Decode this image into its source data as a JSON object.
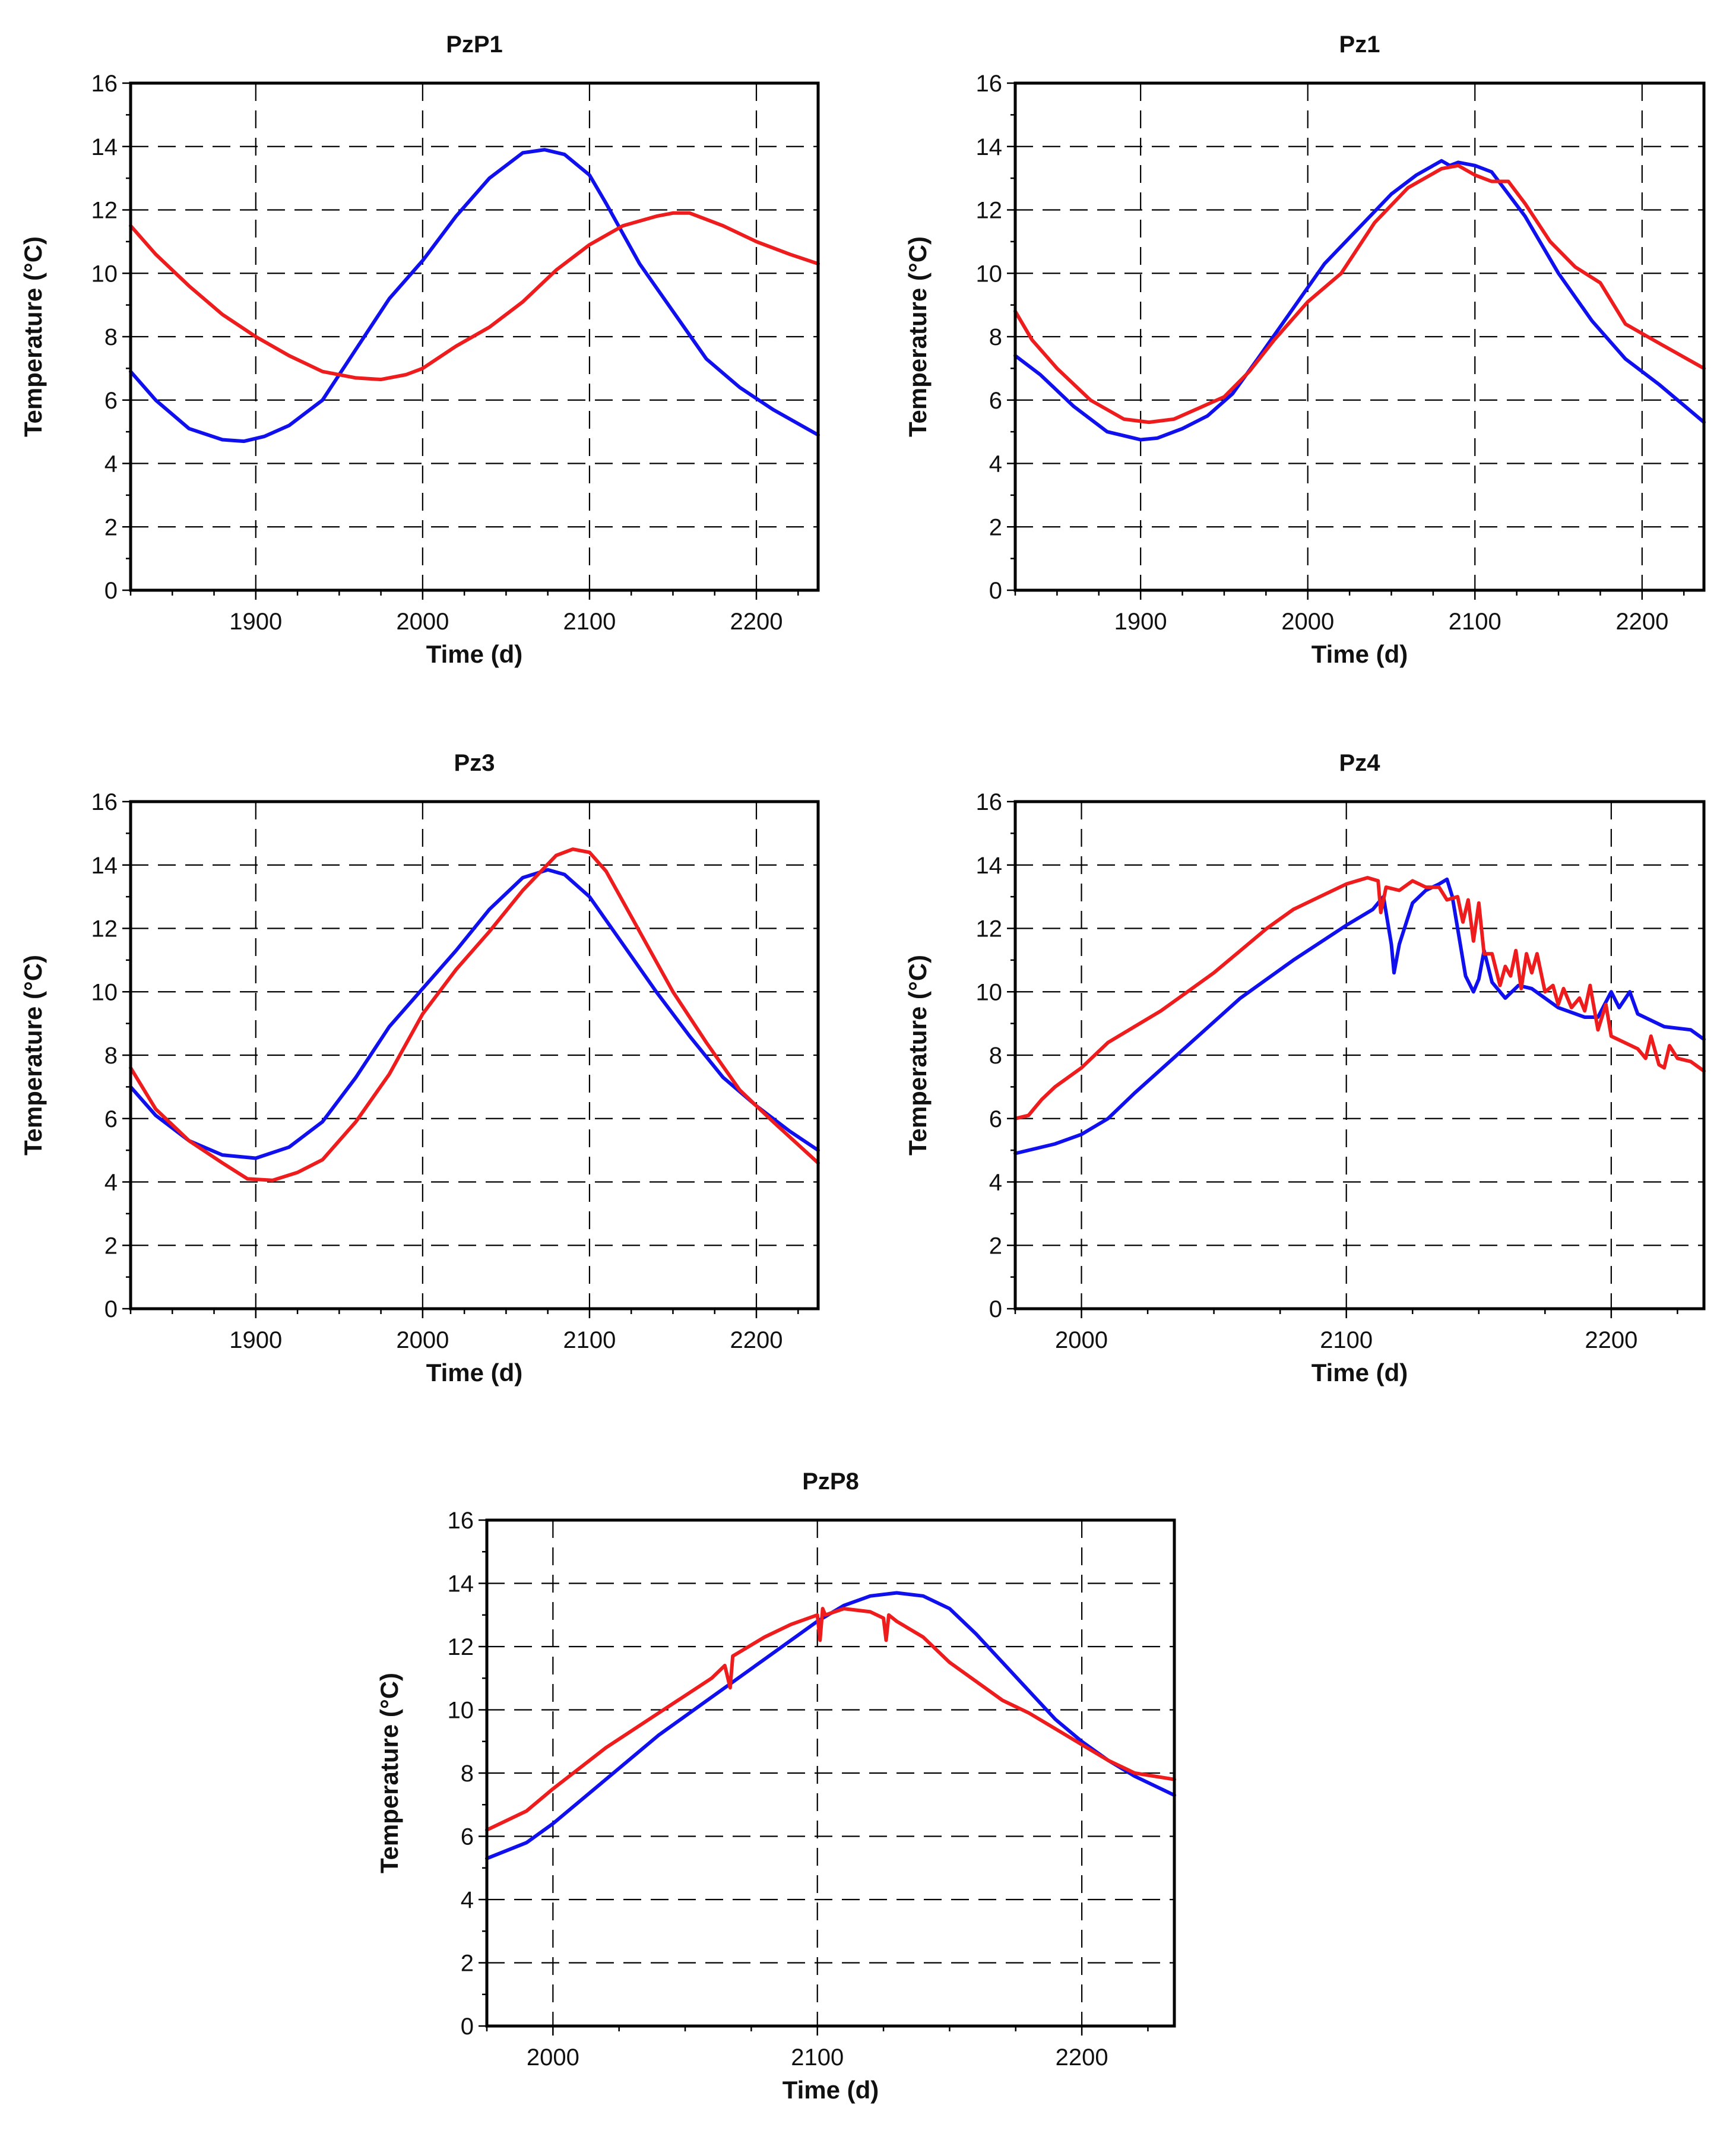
{
  "colors": {
    "blue": "#1010ee",
    "red": "#ee1c1c"
  },
  "chart_data": [
    {
      "type": "line",
      "title": "PzP1",
      "xlabel": "Time (d)",
      "ylabel": "Temperature (°C)",
      "xlim": [
        1825,
        2237
      ],
      "ylim": [
        0,
        16
      ],
      "xticks": [
        1900,
        2000,
        2100,
        2200
      ],
      "xtick_labels": [
        "1900",
        "2000",
        "2100",
        "2200"
      ],
      "xminor": 25,
      "yticks": [
        0,
        2,
        4,
        6,
        8,
        10,
        12,
        14,
        16
      ],
      "ytick_labels": [
        "0",
        "2",
        "4",
        "6",
        "8",
        "10",
        "12",
        "14",
        "16"
      ],
      "grid": true,
      "series": [
        {
          "color": "#1010ee",
          "x": [
            1825,
            1840,
            1860,
            1880,
            1893,
            1905,
            1920,
            1940,
            1960,
            1980,
            2000,
            2020,
            2040,
            2060,
            2073,
            2085,
            2100,
            2110,
            2130,
            2150,
            2170,
            2190,
            2210,
            2237
          ],
          "y": [
            6.9,
            6.0,
            5.1,
            4.75,
            4.7,
            4.85,
            5.2,
            6.0,
            7.6,
            9.2,
            10.4,
            11.8,
            13.0,
            13.8,
            13.9,
            13.75,
            13.1,
            12.2,
            10.3,
            8.8,
            7.3,
            6.4,
            5.7,
            4.9
          ]
        },
        {
          "color": "#ee1c1c",
          "x": [
            1825,
            1840,
            1860,
            1880,
            1900,
            1920,
            1940,
            1960,
            1975,
            1990,
            2000,
            2020,
            2040,
            2060,
            2080,
            2100,
            2120,
            2140,
            2150,
            2160,
            2180,
            2200,
            2220,
            2237
          ],
          "y": [
            11.5,
            10.6,
            9.6,
            8.7,
            8.0,
            7.4,
            6.9,
            6.7,
            6.65,
            6.8,
            7.0,
            7.7,
            8.3,
            9.1,
            10.1,
            10.9,
            11.5,
            11.8,
            11.9,
            11.9,
            11.5,
            11.0,
            10.6,
            10.3
          ]
        }
      ]
    },
    {
      "type": "line",
      "title": "Pz1",
      "xlabel": "Time (d)",
      "ylabel": "Temperature (°C)",
      "xlim": [
        1825,
        2237
      ],
      "ylim": [
        0,
        16
      ],
      "xticks": [
        1900,
        2000,
        2100,
        2200
      ],
      "xtick_labels": [
        "1900",
        "2000",
        "2100",
        "2200"
      ],
      "xminor": 25,
      "yticks": [
        0,
        2,
        4,
        6,
        8,
        10,
        12,
        14,
        16
      ],
      "ytick_labels": [
        "0",
        "2",
        "4",
        "6",
        "8",
        "10",
        "12",
        "14",
        "16"
      ],
      "grid": true,
      "series": [
        {
          "color": "#1010ee",
          "x": [
            1825,
            1840,
            1860,
            1880,
            1900,
            1910,
            1925,
            1940,
            1955,
            1970,
            1990,
            2010,
            2030,
            2050,
            2065,
            2075,
            2080,
            2085,
            2090,
            2100,
            2110,
            2130,
            2150,
            2170,
            2190,
            2210,
            2237
          ],
          "y": [
            7.4,
            6.8,
            5.8,
            5.0,
            4.75,
            4.8,
            5.1,
            5.5,
            6.2,
            7.3,
            8.8,
            10.3,
            11.4,
            12.5,
            13.1,
            13.4,
            13.55,
            13.4,
            13.5,
            13.4,
            13.2,
            11.8,
            10.0,
            8.5,
            7.3,
            6.5,
            5.3
          ]
        },
        {
          "color": "#ee1c1c",
          "x": [
            1825,
            1835,
            1850,
            1870,
            1890,
            1905,
            1920,
            1935,
            1950,
            1965,
            1980,
            2000,
            2020,
            2040,
            2060,
            2080,
            2090,
            2100,
            2110,
            2120,
            2130,
            2145,
            2160,
            2175,
            2190,
            2210,
            2237
          ],
          "y": [
            8.8,
            7.9,
            7.0,
            6.0,
            5.4,
            5.3,
            5.4,
            5.75,
            6.1,
            6.9,
            7.9,
            9.1,
            10.0,
            11.6,
            12.7,
            13.3,
            13.4,
            13.1,
            12.9,
            12.9,
            12.2,
            11.0,
            10.2,
            9.7,
            8.4,
            7.8,
            7.0
          ]
        }
      ]
    },
    {
      "type": "line",
      "title": "Pz3",
      "xlabel": "Time (d)",
      "ylabel": "Temperature (°C)",
      "xlim": [
        1825,
        2237
      ],
      "ylim": [
        0,
        16
      ],
      "xticks": [
        1900,
        2000,
        2100,
        2200
      ],
      "xtick_labels": [
        "1900",
        "2000",
        "2100",
        "2200"
      ],
      "xminor": 25,
      "yticks": [
        0,
        2,
        4,
        6,
        8,
        10,
        12,
        14,
        16
      ],
      "ytick_labels": [
        "0",
        "2",
        "4",
        "6",
        "8",
        "10",
        "12",
        "14",
        "16"
      ],
      "grid": true,
      "series": [
        {
          "color": "#1010ee",
          "x": [
            1825,
            1840,
            1860,
            1880,
            1900,
            1920,
            1940,
            1960,
            1980,
            2000,
            2020,
            2040,
            2060,
            2075,
            2085,
            2100,
            2120,
            2140,
            2160,
            2180,
            2200,
            2220,
            2237
          ],
          "y": [
            7.0,
            6.1,
            5.3,
            4.85,
            4.75,
            5.1,
            5.9,
            7.3,
            8.9,
            10.1,
            11.3,
            12.6,
            13.6,
            13.85,
            13.7,
            13.0,
            11.5,
            10.0,
            8.6,
            7.3,
            6.4,
            5.6,
            5.0
          ]
        },
        {
          "color": "#ee1c1c",
          "x": [
            1825,
            1840,
            1860,
            1880,
            1895,
            1910,
            1925,
            1940,
            1960,
            1980,
            2000,
            2020,
            2040,
            2060,
            2080,
            2090,
            2100,
            2110,
            2130,
            2150,
            2170,
            2190,
            2210,
            2237
          ],
          "y": [
            7.6,
            6.3,
            5.3,
            4.6,
            4.1,
            4.05,
            4.3,
            4.7,
            5.9,
            7.4,
            9.3,
            10.7,
            11.9,
            13.2,
            14.3,
            14.5,
            14.4,
            13.8,
            11.9,
            10.0,
            8.4,
            6.9,
            5.9,
            4.6
          ]
        }
      ]
    },
    {
      "type": "line",
      "title": "Pz4",
      "xlabel": "Time (d)",
      "ylabel": "Temperature (°C)",
      "xlim": [
        1975,
        2235
      ],
      "ylim": [
        0,
        16
      ],
      "xticks": [
        2000,
        2100,
        2200
      ],
      "xtick_labels": [
        "2000",
        "2100",
        "2200"
      ],
      "xminor": 25,
      "yticks": [
        0,
        2,
        4,
        6,
        8,
        10,
        12,
        14,
        16
      ],
      "ytick_labels": [
        "0",
        "2",
        "4",
        "6",
        "8",
        "10",
        "12",
        "14",
        "16"
      ],
      "grid": true,
      "series": [
        {
          "color": "#1010ee",
          "x": [
            1975,
            1990,
            2000,
            2010,
            2020,
            2040,
            2060,
            2080,
            2100,
            2110,
            2114,
            2117,
            2118,
            2120,
            2125,
            2130,
            2135,
            2138,
            2140,
            2145,
            2148,
            2150,
            2152,
            2155,
            2160,
            2165,
            2170,
            2180,
            2190,
            2195,
            2200,
            2203,
            2207,
            2210,
            2220,
            2230,
            2235
          ],
          "y": [
            4.9,
            5.2,
            5.5,
            6.0,
            6.8,
            8.3,
            9.8,
            11.0,
            12.1,
            12.6,
            13.0,
            11.5,
            10.6,
            11.5,
            12.8,
            13.2,
            13.4,
            13.55,
            13.0,
            10.5,
            10.0,
            10.4,
            11.3,
            10.3,
            9.8,
            10.2,
            10.1,
            9.5,
            9.2,
            9.2,
            10.0,
            9.5,
            10.0,
            9.3,
            8.9,
            8.8,
            8.5
          ]
        },
        {
          "color": "#ee1c1c",
          "x": [
            1975,
            1980,
            1982,
            1985,
            1990,
            2000,
            2010,
            2020,
            2030,
            2040,
            2050,
            2060,
            2070,
            2080,
            2090,
            2100,
            2108,
            2112,
            2113,
            2115,
            2120,
            2125,
            2130,
            2135,
            2138,
            2142,
            2144,
            2146,
            2148,
            2150,
            2152,
            2155,
            2158,
            2160,
            2162,
            2164,
            2166,
            2168,
            2170,
            2172,
            2175,
            2178,
            2180,
            2182,
            2185,
            2188,
            2190,
            2192,
            2195,
            2198,
            2200,
            2205,
            2210,
            2213,
            2215,
            2218,
            2220,
            2222,
            2225,
            2230,
            2235
          ],
          "y": [
            6.0,
            6.1,
            6.3,
            6.6,
            7.0,
            7.6,
            8.4,
            8.9,
            9.4,
            10.0,
            10.6,
            11.3,
            12.0,
            12.6,
            13.0,
            13.4,
            13.6,
            13.5,
            12.5,
            13.3,
            13.2,
            13.5,
            13.3,
            13.3,
            12.9,
            13.0,
            12.2,
            12.9,
            11.6,
            12.8,
            11.2,
            11.2,
            10.2,
            10.8,
            10.5,
            11.3,
            10.1,
            11.2,
            10.6,
            11.2,
            10.0,
            10.2,
            9.6,
            10.1,
            9.5,
            9.8,
            9.4,
            10.2,
            8.8,
            9.6,
            8.6,
            8.4,
            8.2,
            7.9,
            8.6,
            7.7,
            7.6,
            8.3,
            7.9,
            7.8,
            7.5
          ]
        }
      ]
    },
    {
      "type": "line",
      "title": "PzP8",
      "xlabel": "Time (d)",
      "ylabel": "Temperature (°C)",
      "xlim": [
        1975,
        2235
      ],
      "ylim": [
        0,
        16
      ],
      "xticks": [
        2000,
        2100,
        2200
      ],
      "xtick_labels": [
        "2000",
        "2100",
        "2200"
      ],
      "xminor": 25,
      "yticks": [
        0,
        2,
        4,
        6,
        8,
        10,
        12,
        14,
        16
      ],
      "ytick_labels": [
        "0",
        "2",
        "4",
        "6",
        "8",
        "10",
        "12",
        "14",
        "16"
      ],
      "grid": true,
      "series": [
        {
          "color": "#1010ee",
          "x": [
            1975,
            1990,
            2000,
            2020,
            2040,
            2060,
            2080,
            2100,
            2110,
            2120,
            2130,
            2140,
            2150,
            2160,
            2170,
            2180,
            2190,
            2200,
            2210,
            2220,
            2235
          ],
          "y": [
            5.3,
            5.8,
            6.4,
            7.8,
            9.2,
            10.4,
            11.6,
            12.8,
            13.3,
            13.6,
            13.7,
            13.6,
            13.2,
            12.4,
            11.5,
            10.6,
            9.7,
            9.0,
            8.4,
            7.9,
            7.3
          ]
        },
        {
          "color": "#ee1c1c",
          "x": [
            1975,
            1990,
            2000,
            2020,
            2040,
            2060,
            2065,
            2067,
            2068,
            2070,
            2080,
            2090,
            2100,
            2101,
            2102,
            2103,
            2110,
            2120,
            2125,
            2126,
            2127,
            2130,
            2140,
            2150,
            2160,
            2170,
            2180,
            2190,
            2200,
            2210,
            2220,
            2235
          ],
          "y": [
            6.2,
            6.8,
            7.5,
            8.8,
            9.9,
            11.0,
            11.4,
            10.7,
            11.7,
            11.8,
            12.3,
            12.7,
            13.0,
            12.2,
            13.2,
            13.0,
            13.2,
            13.1,
            12.9,
            12.2,
            13.0,
            12.8,
            12.3,
            11.5,
            10.9,
            10.3,
            9.9,
            9.4,
            8.9,
            8.4,
            8.0,
            7.8
          ]
        }
      ]
    }
  ]
}
